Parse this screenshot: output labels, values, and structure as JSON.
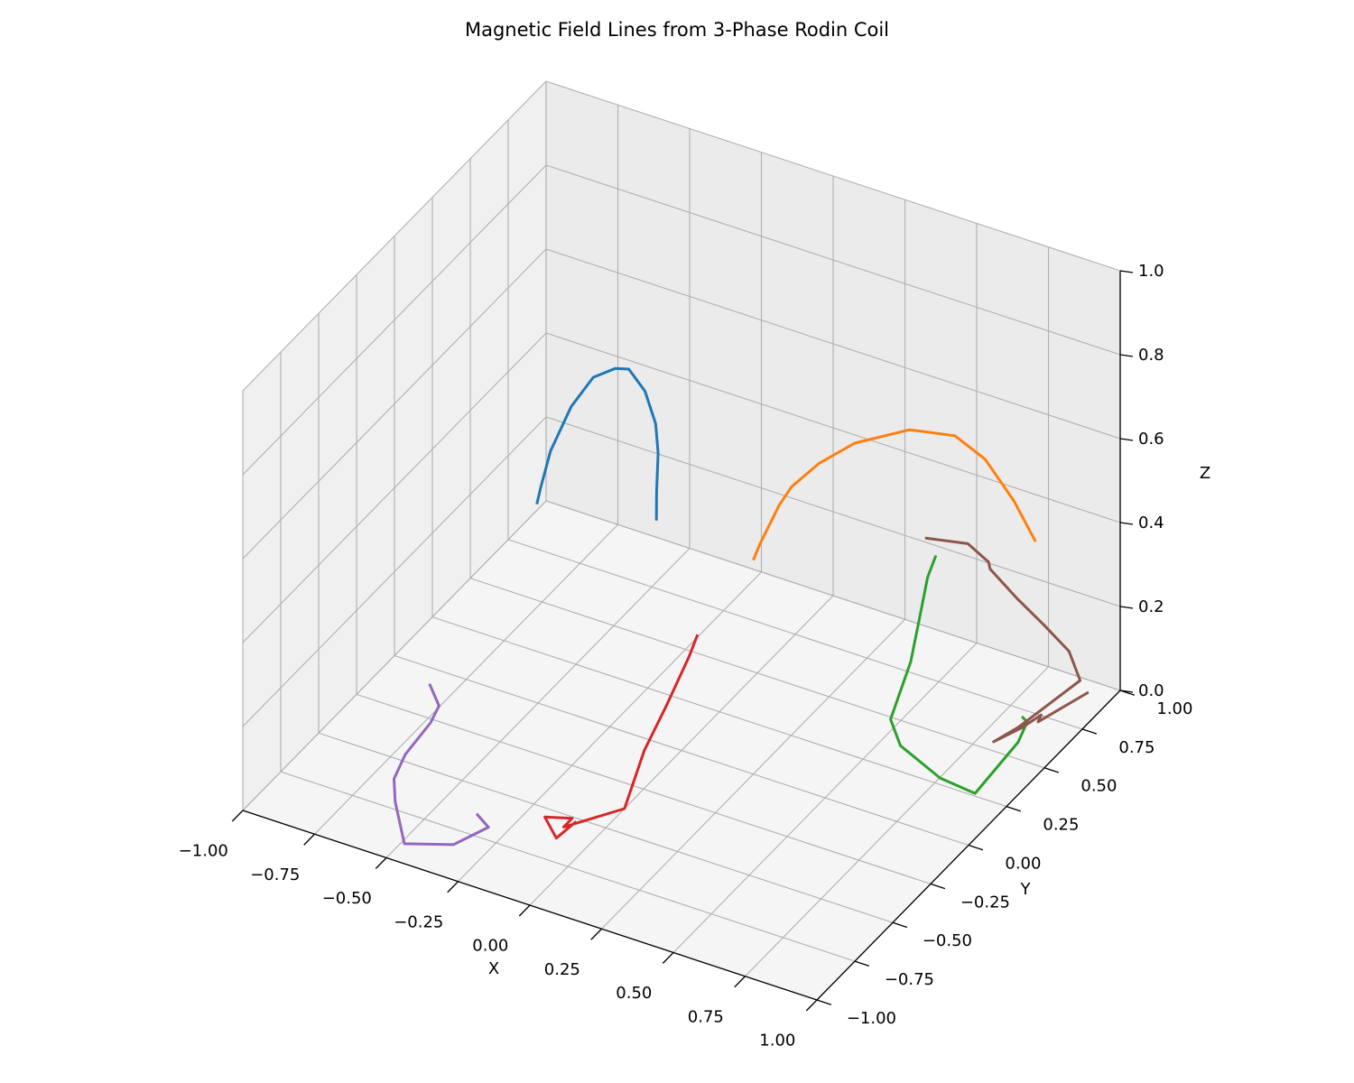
{
  "chart_data": {
    "type": "line",
    "projection": "3d",
    "title": "Magnetic Field Lines from 3-Phase Rodin Coil",
    "xlabel": "X",
    "ylabel": "Y",
    "zlabel": "Z",
    "xlim": [
      -1,
      1
    ],
    "ylim": [
      -1,
      1
    ],
    "zlim": [
      0,
      1
    ],
    "grid": true,
    "x_ticks": [
      "−1.00",
      "−0.75",
      "−0.50",
      "−0.25",
      "0.00",
      "0.25",
      "0.50",
      "0.75",
      "1.00"
    ],
    "y_ticks": [
      "−1.00",
      "−0.75",
      "−0.50",
      "−0.25",
      "0.00",
      "0.25",
      "0.50",
      "0.75",
      "1.00"
    ],
    "z_ticks": [
      "0.0",
      "0.2",
      "0.4",
      "0.6",
      "0.8",
      "1.0"
    ],
    "series": [
      {
        "color": "#1f77b4",
        "points": [
          [
            -0.51,
            -0.05,
            0.5
          ],
          [
            -0.5,
            -0.04,
            0.54
          ],
          [
            -0.48,
            -0.01,
            0.62
          ],
          [
            -0.43,
            0.04,
            0.72
          ],
          [
            -0.38,
            0.1,
            0.78
          ],
          [
            -0.32,
            0.14,
            0.8
          ],
          [
            -0.28,
            0.16,
            0.8
          ],
          [
            -0.22,
            0.16,
            0.76
          ],
          [
            -0.17,
            0.14,
            0.7
          ],
          [
            -0.15,
            0.12,
            0.64
          ],
          [
            -0.14,
            0.09,
            0.56
          ],
          [
            -0.13,
            0.07,
            0.5
          ]
        ]
      },
      {
        "color": "#ff7f0e",
        "points": [
          [
            0.25,
            0.03,
            0.5
          ],
          [
            0.27,
            0.04,
            0.54
          ],
          [
            0.32,
            0.08,
            0.63
          ],
          [
            0.35,
            0.11,
            0.67
          ],
          [
            0.42,
            0.17,
            0.72
          ],
          [
            0.51,
            0.25,
            0.76
          ],
          [
            0.65,
            0.37,
            0.78
          ],
          [
            0.77,
            0.46,
            0.76
          ],
          [
            0.85,
            0.52,
            0.7
          ],
          [
            0.93,
            0.57,
            0.6
          ],
          [
            0.99,
            0.61,
            0.5
          ]
        ]
      },
      {
        "color": "#2ca02c",
        "points": [
          [
            0.52,
            0.8,
            0.3
          ],
          [
            0.5,
            0.78,
            0.25
          ],
          [
            0.49,
            0.74,
            0.16
          ],
          [
            0.49,
            0.68,
            0.08
          ],
          [
            0.5,
            0.52,
            0.0
          ],
          [
            0.6,
            0.4,
            0.0
          ],
          [
            0.8,
            0.3,
            0.0
          ],
          [
            0.94,
            0.28,
            0.0
          ],
          [
            0.92,
            0.62,
            0.0
          ],
          [
            0.89,
            0.74,
            0.0
          ],
          [
            0.86,
            0.76,
            0.0
          ]
        ]
      },
      {
        "color": "#d62728",
        "points": [
          [
            -0.1,
            -0.55,
            0.0
          ],
          [
            -0.11,
            -0.67,
            0.0
          ],
          [
            -0.2,
            -0.58,
            0.0
          ],
          [
            -0.12,
            -0.54,
            0.0
          ],
          [
            -0.12,
            -0.6,
            0.0
          ],
          [
            0.0,
            -0.4,
            0.0
          ],
          [
            0.01,
            -0.28,
            0.1
          ],
          [
            0.04,
            -0.18,
            0.18
          ],
          [
            0.05,
            -0.12,
            0.22
          ],
          [
            0.06,
            -0.06,
            0.26
          ],
          [
            0.07,
            -0.02,
            0.3
          ]
        ]
      },
      {
        "color": "#9467bd",
        "points": [
          [
            -0.58,
            -0.67,
            0.27
          ],
          [
            -0.55,
            -0.66,
            0.22
          ],
          [
            -0.55,
            -0.72,
            0.2
          ],
          [
            -0.58,
            -0.84,
            0.16
          ],
          [
            -0.59,
            -0.9,
            0.12
          ],
          [
            -0.57,
            -0.93,
            0.08
          ],
          [
            -0.52,
            -0.96,
            0.0
          ],
          [
            -0.38,
            -0.88,
            0.0
          ],
          [
            -0.33,
            -0.73,
            0.0
          ],
          [
            -0.4,
            -0.68,
            0.0
          ]
        ]
      },
      {
        "color": "#8c564b",
        "points": [
          [
            0.98,
            1.0,
            0.0
          ],
          [
            0.92,
            0.76,
            0.0
          ],
          [
            0.91,
            0.8,
            0.0
          ],
          [
            0.89,
            0.7,
            0.0
          ],
          [
            0.85,
            0.58,
            0.0
          ],
          [
            0.88,
            0.7,
            0.0
          ],
          [
            0.97,
            0.96,
            0.04
          ],
          [
            0.95,
            0.92,
            0.12
          ],
          [
            0.9,
            0.84,
            0.2
          ],
          [
            0.85,
            0.74,
            0.29
          ],
          [
            0.8,
            0.65,
            0.38
          ],
          [
            0.8,
            0.64,
            0.4
          ],
          [
            0.76,
            0.57,
            0.46
          ],
          [
            0.67,
            0.44,
            0.5
          ]
        ]
      }
    ]
  }
}
